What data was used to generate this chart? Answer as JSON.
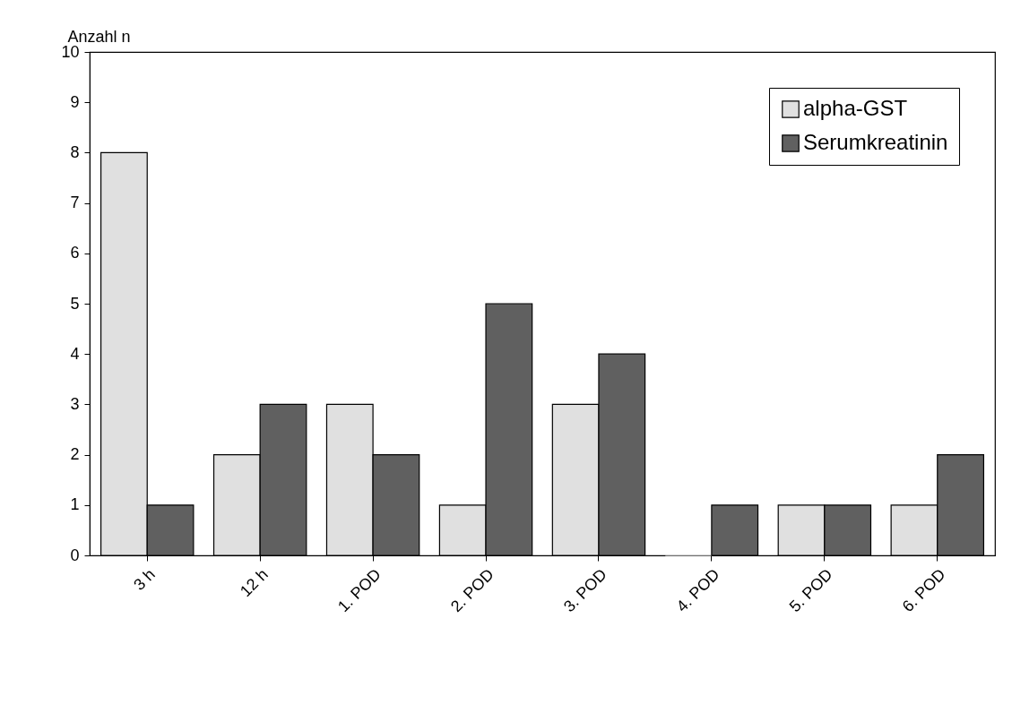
{
  "chart_data": {
    "type": "bar",
    "ylabel": "Anzahl n",
    "categories": [
      "3 h",
      "12 h",
      "1. POD",
      "2. POD",
      "3. POD",
      "4. POD",
      "5. POD",
      "6. POD"
    ],
    "series": [
      {
        "name": "alpha-GST",
        "color": "#e0e0e0",
        "values": [
          8,
          2,
          3,
          1,
          3,
          0,
          1,
          1
        ]
      },
      {
        "name": "Serumkreatinin",
        "color": "#606060",
        "values": [
          1,
          3,
          2,
          5,
          4,
          1,
          1,
          2
        ]
      }
    ],
    "ylim": [
      0,
      10
    ],
    "yticks": [
      0,
      1,
      2,
      3,
      4,
      5,
      6,
      7,
      8,
      9,
      10
    ],
    "grid": false,
    "legend": "top right"
  }
}
